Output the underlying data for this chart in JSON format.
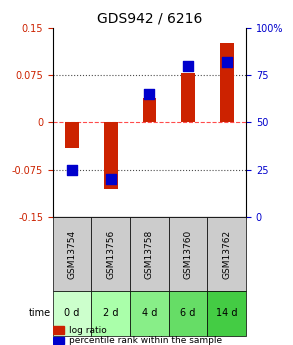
{
  "title": "GDS942 / 6216",
  "samples": [
    "GSM13754",
    "GSM13756",
    "GSM13758",
    "GSM13760",
    "GSM13762"
  ],
  "time_labels": [
    "0 d",
    "2 d",
    "4 d",
    "6 d",
    "14 d"
  ],
  "log_ratios": [
    -0.04,
    -0.105,
    0.038,
    0.078,
    0.125
  ],
  "percentile_ranks": [
    25,
    20,
    65,
    80,
    82
  ],
  "ylim_left": [
    -0.15,
    0.15
  ],
  "ylim_right": [
    0,
    100
  ],
  "yticks_left": [
    -0.15,
    -0.075,
    0,
    0.075,
    0.15
  ],
  "yticks_right": [
    0,
    25,
    50,
    75,
    100
  ],
  "ytick_labels_left": [
    "-0.15",
    "-0.075",
    "0",
    "0.075",
    "0.15"
  ],
  "ytick_labels_right": [
    "0",
    "25",
    "50",
    "75",
    "100%"
  ],
  "hlines": [
    -0.075,
    0,
    0.075
  ],
  "hline_styles": [
    "dotted",
    "dashed",
    "dotted"
  ],
  "bar_color": "#cc2200",
  "dot_color": "#0000cc",
  "bar_width": 0.35,
  "dot_size": 60,
  "left_tick_color": "#cc2200",
  "right_tick_color": "#0000cc",
  "sample_bg_color": "#cccccc",
  "time_bg_colors": [
    "#ccffcc",
    "#aaffaa",
    "#88ee88",
    "#66dd66",
    "#44cc44"
  ],
  "legend_bar_label": "log ratio",
  "legend_dot_label": "percentile rank within the sample",
  "time_label": "time",
  "plot_bg": "#ffffff",
  "grid_color": "#aaaaaa"
}
